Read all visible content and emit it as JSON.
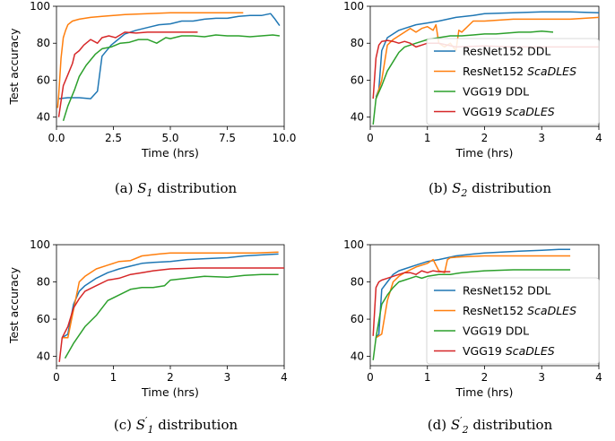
{
  "chart_data": [
    {
      "type": "line",
      "caption": "(a) S1 distribution",
      "caption_parts": {
        "prefix": "(a)",
        "sym": "S",
        "sub": "1",
        "prime": false,
        "suffix": "distribution"
      },
      "xlabel": "Time (hrs)",
      "ylabel": "Test accuracy",
      "xlim": [
        0,
        10
      ],
      "ylim": [
        35,
        100
      ],
      "xticks": [
        0.0,
        2.5,
        5.0,
        7.5,
        10.0
      ],
      "xtick_labels": [
        "0.0",
        "2.5",
        "5.0",
        "7.5",
        "10.0"
      ],
      "yticks": [
        40,
        60,
        80,
        100
      ],
      "ytick_labels": [
        "40",
        "60",
        "80",
        "100"
      ],
      "legend": null,
      "series": [
        {
          "name": "ResNet152 DDL",
          "color": "#1f77b4",
          "x": [
            0.1,
            0.5,
            1.0,
            1.5,
            1.8,
            2.0,
            2.4,
            3.0,
            3.5,
            4.0,
            4.5,
            5.0,
            5.5,
            6.0,
            6.5,
            7.0,
            7.5,
            8.0,
            8.5,
            9.0,
            9.4,
            9.6,
            9.8
          ],
          "y": [
            50,
            50.5,
            50.5,
            50,
            54,
            73,
            79,
            85,
            87,
            88.5,
            90,
            90.5,
            92,
            92,
            93,
            93.5,
            93.5,
            94.5,
            95,
            95,
            96,
            93,
            89.5
          ]
        },
        {
          "name": "ResNet152 ScaDLES",
          "color": "#ff7f0e",
          "x": [
            0.05,
            0.1,
            0.2,
            0.3,
            0.4,
            0.5,
            0.7,
            1.0,
            1.5,
            2.0,
            2.5,
            3.0,
            4.0,
            5.0,
            6.0,
            7.0,
            8.2
          ],
          "y": [
            45,
            52,
            72,
            83,
            87,
            90,
            92,
            93,
            94,
            94.5,
            95,
            95.5,
            96,
            96.5,
            96.5,
            96.5,
            96.5
          ]
        },
        {
          "name": "VGG19 DDL",
          "color": "#2ca02c",
          "x": [
            0.3,
            0.5,
            0.8,
            1.0,
            1.3,
            1.7,
            2.0,
            2.4,
            2.8,
            3.2,
            3.6,
            4.0,
            4.4,
            4.8,
            5.0,
            5.5,
            6.0,
            6.5,
            7.0,
            7.5,
            8.0,
            8.5,
            9.0,
            9.5,
            9.8
          ],
          "y": [
            38,
            46,
            55,
            62,
            68,
            74,
            77,
            78,
            80,
            80.5,
            82,
            82,
            80,
            83,
            82.5,
            84,
            84,
            83.5,
            84.5,
            84,
            84,
            83.5,
            84,
            84.5,
            84
          ]
        },
        {
          "name": "VGG19 ScaDLES",
          "color": "#d62728",
          "x": [
            0.1,
            0.3,
            0.5,
            0.7,
            0.8,
            1.0,
            1.2,
            1.5,
            1.8,
            2.0,
            2.3,
            2.6,
            3.0,
            3.5,
            4.0,
            5.0,
            6.2
          ],
          "y": [
            40,
            57,
            63,
            69,
            74,
            76,
            79,
            82,
            80,
            83,
            84,
            83,
            86,
            85.5,
            86,
            86,
            86
          ]
        }
      ]
    },
    {
      "type": "line",
      "caption": "(b) S2 distribution",
      "caption_parts": {
        "prefix": "(b)",
        "sym": "S",
        "sub": "2",
        "prime": false,
        "suffix": "distribution"
      },
      "xlabel": "Time (hrs)",
      "ylabel": "",
      "xlim": [
        0,
        4
      ],
      "ylim": [
        35,
        100
      ],
      "xticks": [
        0,
        1,
        2,
        3,
        4
      ],
      "xtick_labels": [
        "0",
        "1",
        "2",
        "3",
        "4"
      ],
      "yticks": [
        40,
        60,
        80,
        100
      ],
      "ytick_labels": [
        "40",
        "60",
        "80",
        "100"
      ],
      "legend": "lower right",
      "series": [
        {
          "name": "ResNet152 DDL",
          "color": "#1f77b4",
          "x": [
            0.1,
            0.15,
            0.2,
            0.3,
            0.4,
            0.5,
            0.6,
            0.8,
            1.0,
            1.2,
            1.5,
            1.8,
            2.0,
            2.5,
            3.0,
            3.5,
            4.0
          ],
          "y": [
            51,
            55,
            76,
            83,
            85,
            87,
            88,
            90,
            91,
            92,
            94,
            95,
            96,
            96.5,
            97,
            97,
            96.5
          ]
        },
        {
          "name": "ResNet152 ScaDLES",
          "color": "#ff7f0e",
          "x": [
            0.1,
            0.2,
            0.3,
            0.4,
            0.5,
            0.6,
            0.7,
            0.8,
            0.9,
            1.0,
            1.1,
            1.15,
            1.2,
            1.3,
            1.4,
            1.5,
            1.55,
            1.6,
            1.8,
            2.0,
            2.5,
            3.0,
            3.5,
            4.0
          ],
          "y": [
            50,
            60,
            79,
            82,
            84,
            86,
            88,
            86,
            88,
            89,
            87,
            90,
            80,
            78,
            80,
            76,
            87,
            86,
            92,
            92,
            93,
            93,
            93,
            94
          ]
        },
        {
          "name": "VGG19 DDL",
          "color": "#2ca02c",
          "x": [
            0.05,
            0.1,
            0.2,
            0.3,
            0.4,
            0.5,
            0.6,
            0.7,
            0.8,
            0.9,
            1.0,
            1.2,
            1.4,
            1.6,
            1.8,
            2.0,
            2.2,
            2.4,
            2.6,
            2.8,
            3.0,
            3.2
          ],
          "y": [
            36,
            50,
            57,
            65,
            70,
            75,
            78,
            79,
            80,
            81,
            82,
            83,
            84,
            84,
            84.5,
            85,
            85,
            85.5,
            86,
            86,
            86.5,
            86
          ]
        },
        {
          "name": "VGG19 ScaDLES",
          "color": "#d62728",
          "x": [
            0.05,
            0.1,
            0.15,
            0.2,
            0.3,
            0.4,
            0.5,
            0.6,
            0.7,
            0.8,
            0.9,
            1.0,
            1.2,
            1.5,
            2.0,
            2.5,
            3.0,
            3.5,
            4.0
          ],
          "y": [
            50,
            72,
            79,
            81,
            81.5,
            81,
            80,
            81,
            80,
            78,
            79,
            80,
            80,
            78,
            78.5,
            78,
            78,
            78,
            78
          ]
        }
      ]
    },
    {
      "type": "line",
      "caption": "(c) S'1 distribution",
      "caption_parts": {
        "prefix": "(c)",
        "sym": "S",
        "sub": "1",
        "prime": true,
        "suffix": "distribution"
      },
      "xlabel": "Time (hrs)",
      "ylabel": "Test accuracy",
      "xlim": [
        0,
        4
      ],
      "ylim": [
        35,
        100
      ],
      "xticks": [
        0,
        1,
        2,
        3,
        4
      ],
      "xtick_labels": [
        "0",
        "1",
        "2",
        "3",
        "4"
      ],
      "yticks": [
        40,
        60,
        80,
        100
      ],
      "ytick_labels": [
        "40",
        "60",
        "80",
        "100"
      ],
      "legend": null,
      "series": [
        {
          "name": "ResNet152 DDL",
          "color": "#1f77b4",
          "x": [
            0.1,
            0.2,
            0.3,
            0.4,
            0.5,
            0.7,
            0.9,
            1.1,
            1.3,
            1.5,
            1.7,
            2.0,
            2.3,
            2.6,
            3.0,
            3.3,
            3.6,
            3.9
          ],
          "y": [
            50,
            52,
            68,
            75,
            78,
            82,
            85,
            87,
            88.5,
            90,
            90.5,
            91,
            92,
            92.5,
            93,
            94,
            94.5,
            95
          ]
        },
        {
          "name": "ResNet152 ScaDLES",
          "color": "#ff7f0e",
          "x": [
            0.1,
            0.2,
            0.3,
            0.4,
            0.5,
            0.7,
            0.9,
            1.1,
            1.3,
            1.5,
            1.8,
            2.0,
            2.5,
            3.0,
            3.5,
            3.9
          ],
          "y": [
            50,
            50,
            65,
            80,
            83,
            87,
            89,
            91,
            91.5,
            94,
            95,
            95.5,
            95.5,
            95.5,
            95.5,
            96
          ]
        },
        {
          "name": "VGG19 DDL",
          "color": "#2ca02c",
          "x": [
            0.15,
            0.3,
            0.5,
            0.7,
            0.9,
            1.1,
            1.3,
            1.5,
            1.7,
            1.9,
            2.0,
            2.3,
            2.6,
            3.0,
            3.3,
            3.6,
            3.9
          ],
          "y": [
            39,
            47,
            56,
            62,
            70,
            73,
            76,
            77,
            77,
            78,
            81,
            82,
            83,
            82.5,
            83.5,
            84,
            84
          ]
        },
        {
          "name": "VGG19 ScaDLES",
          "color": "#d62728",
          "x": [
            0.05,
            0.1,
            0.2,
            0.3,
            0.4,
            0.5,
            0.7,
            0.9,
            1.1,
            1.3,
            1.5,
            1.7,
            2.0,
            2.5,
            3.0,
            3.5,
            4.0
          ],
          "y": [
            37,
            50,
            56,
            66,
            71,
            75,
            78,
            81,
            82,
            84,
            85,
            86,
            87,
            87.5,
            87.5,
            87.5,
            87.5
          ]
        }
      ]
    },
    {
      "type": "line",
      "caption": "(d) S'2 distribution",
      "caption_parts": {
        "prefix": "(d)",
        "sym": "S",
        "sub": "2",
        "prime": true,
        "suffix": "distribution"
      },
      "xlabel": "Time (hrs)",
      "ylabel": "",
      "xlim": [
        0,
        4
      ],
      "ylim": [
        35,
        100
      ],
      "xticks": [
        0,
        1,
        2,
        3,
        4
      ],
      "xtick_labels": [
        "0",
        "1",
        "2",
        "3",
        "4"
      ],
      "yticks": [
        40,
        60,
        80,
        100
      ],
      "ytick_labels": [
        "40",
        "60",
        "80",
        "100"
      ],
      "legend": "lower right",
      "series": [
        {
          "name": "ResNet152 DDL",
          "color": "#1f77b4",
          "x": [
            0.1,
            0.15,
            0.2,
            0.3,
            0.4,
            0.5,
            0.6,
            0.8,
            1.0,
            1.2,
            1.5,
            1.8,
            2.0,
            2.3,
            2.6,
            3.0,
            3.3,
            3.5
          ],
          "y": [
            50,
            52,
            76,
            80,
            84,
            86,
            87,
            89,
            91,
            92,
            94,
            95,
            95.5,
            96,
            96.5,
            97,
            97.5,
            97.5
          ]
        },
        {
          "name": "ResNet152 ScaDLES",
          "color": "#ff7f0e",
          "x": [
            0.1,
            0.2,
            0.3,
            0.4,
            0.5,
            0.6,
            0.8,
            1.0,
            1.1,
            1.2,
            1.3,
            1.35,
            1.4,
            1.6,
            2.0,
            2.5,
            3.0,
            3.5
          ],
          "y": [
            50,
            52,
            70,
            80,
            83,
            85,
            88,
            90,
            92,
            86,
            85,
            92,
            93,
            93.5,
            94,
            94,
            94,
            94
          ]
        },
        {
          "name": "VGG19 DDL",
          "color": "#2ca02c",
          "x": [
            0.05,
            0.1,
            0.2,
            0.3,
            0.4,
            0.5,
            0.6,
            0.7,
            0.8,
            0.9,
            1.0,
            1.2,
            1.4,
            1.6,
            1.8,
            2.0,
            2.5,
            3.0,
            3.5
          ],
          "y": [
            38,
            50,
            68,
            73,
            77,
            80,
            81,
            82,
            83,
            82,
            83,
            84,
            84,
            85,
            85.5,
            86,
            86.5,
            86.5,
            86.5
          ]
        },
        {
          "name": "VGG19 ScaDLES",
          "color": "#d62728",
          "x": [
            0.05,
            0.1,
            0.15,
            0.2,
            0.3,
            0.4,
            0.5,
            0.6,
            0.7,
            0.8,
            0.9,
            1.0,
            1.1,
            1.2,
            1.3,
            1.4
          ],
          "y": [
            51,
            77,
            80,
            81,
            82,
            83,
            84,
            85,
            85,
            84,
            86,
            85,
            86,
            85.5,
            85.5,
            85.5
          ]
        }
      ]
    }
  ]
}
